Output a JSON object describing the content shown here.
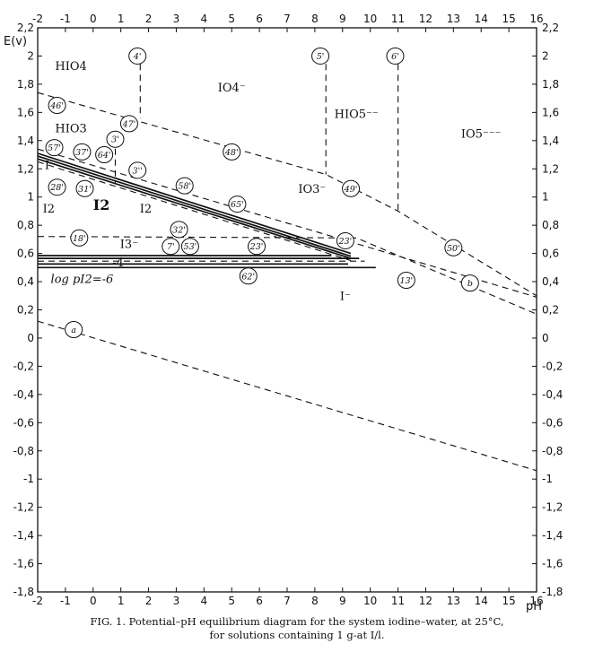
{
  "chart_data": {
    "type": "line",
    "xlabel": "pH",
    "ylabel": "E(v)",
    "xlim": [
      -2,
      16
    ],
    "ylim": [
      -1.8,
      2.2
    ],
    "x_ticks": [
      "-2",
      "-1",
      "0",
      "1",
      "2",
      "3",
      "4",
      "5",
      "6",
      "7",
      "8",
      "9",
      "10",
      "11",
      "12",
      "13",
      "14",
      "15",
      "16"
    ],
    "x_ticks_top": [
      "-2",
      "-1",
      "0",
      "1",
      "2",
      "3",
      "4",
      "5",
      "6",
      "7",
      "8",
      "9",
      "10",
      "11",
      "12",
      "13",
      "14",
      "15",
      "16"
    ],
    "y_ticks": [
      "2,2",
      "2",
      "1,8",
      "1,6",
      "1,4",
      "1,2",
      "1",
      "0,8",
      "0,6",
      "0,4",
      "0,2",
      "0",
      "-0,2",
      "-0,4",
      "-0,6",
      "-0,8",
      "-1",
      "-1,2",
      "-1,4",
      "-1,6",
      "-1,8"
    ],
    "grid": false,
    "series": [
      {
        "name": "a",
        "style": "dashed",
        "x": [
          -2,
          16
        ],
        "y": [
          0.12,
          -0.94
        ]
      },
      {
        "name": "b",
        "style": "dashed",
        "x": [
          -2,
          16
        ],
        "y": [
          1.34,
          0.29
        ]
      },
      {
        "style": "dashed",
        "x": [
          -2,
          8.4,
          11,
          16
        ],
        "y": [
          1.74,
          1.16,
          0.9,
          0.3
        ]
      },
      {
        "style": "dashed",
        "x": [
          -2,
          9.5,
          16
        ],
        "y": [
          0.72,
          0.71,
          0.17
        ]
      },
      {
        "style": "dashed",
        "x": [
          1.7,
          1.7
        ],
        "y": [
          2.02,
          1.56
        ]
      },
      {
        "style": "dashed",
        "x": [
          8.4,
          8.4
        ],
        "y": [
          2.02,
          1.16
        ]
      },
      {
        "style": "dashed",
        "x": [
          11,
          11
        ],
        "y": [
          2.02,
          0.9
        ]
      },
      {
        "style": "dashed",
        "x": [
          0.8,
          0.8
        ],
        "y": [
          1.42,
          1.09
        ]
      },
      {
        "style": "solid",
        "x": [
          -2,
          9.3
        ],
        "y": [
          1.31,
          0.6
        ]
      },
      {
        "style": "solid",
        "x": [
          -2,
          9.3
        ],
        "y": [
          1.29,
          0.58
        ]
      },
      {
        "style": "solid",
        "x": [
          -2,
          9.3
        ],
        "y": [
          1.27,
          0.565
        ]
      },
      {
        "style": "dashed",
        "x": [
          -2,
          9.3
        ],
        "y": [
          1.25,
          0.55
        ]
      },
      {
        "style": "solid",
        "x": [
          -2,
          8.6
        ],
        "y": [
          0.585,
          0.585
        ]
      },
      {
        "style": "solid",
        "x": [
          -2,
          9.6
        ],
        "y": [
          0.565,
          0.565
        ]
      },
      {
        "style": "dashed",
        "x": [
          -2,
          9.8
        ],
        "y": [
          0.545,
          0.545
        ]
      },
      {
        "style": "solid",
        "x": [
          -2,
          10.2
        ],
        "y": [
          0.5,
          0.5
        ]
      },
      {
        "style": "solid",
        "x": [
          -2,
          9.2
        ],
        "y": [
          0.525,
          0.525
        ]
      }
    ],
    "species_labels": [
      {
        "text": "HIO4",
        "x": -0.8,
        "y": 1.9
      },
      {
        "text": "IO4⁻",
        "x": 5,
        "y": 1.75
      },
      {
        "text": "HIO5⁻⁻",
        "x": 9.5,
        "y": 1.56
      },
      {
        "text": "IO5⁻⁻⁻",
        "x": 14,
        "y": 1.42
      },
      {
        "text": "HIO3",
        "x": -0.8,
        "y": 1.46
      },
      {
        "text": "IO3⁻",
        "x": 7.9,
        "y": 1.03
      },
      {
        "text": "I⁻",
        "x": -1.55,
        "y": 1.2
      },
      {
        "text": "I2",
        "x": -1.6,
        "y": 0.89
      },
      {
        "text": "I2",
        "x": 0.3,
        "y": 0.91,
        "bold": true
      },
      {
        "text": "I2",
        "x": 1.9,
        "y": 0.89
      },
      {
        "text": "I3⁻",
        "x": 1.3,
        "y": 0.64
      },
      {
        "text": "-4",
        "x": 0.9,
        "y": 0.51
      },
      {
        "text": "log pI2=-6",
        "x": -0.4,
        "y": 0.39
      },
      {
        "text": "I⁻",
        "x": 9.1,
        "y": 0.27
      }
    ],
    "annotations": [
      {
        "text": "4'",
        "x": 1.6,
        "y": 2.0
      },
      {
        "text": "5'",
        "x": 8.2,
        "y": 2.0
      },
      {
        "text": "6'",
        "x": 10.9,
        "y": 2.0
      },
      {
        "text": "46'",
        "x": -1.3,
        "y": 1.65
      },
      {
        "text": "47'",
        "x": 1.3,
        "y": 1.52
      },
      {
        "text": "48'",
        "x": 5,
        "y": 1.32
      },
      {
        "text": "3'",
        "x": 0.8,
        "y": 1.41
      },
      {
        "text": "57'",
        "x": -1.4,
        "y": 1.35
      },
      {
        "text": "37'",
        "x": -0.4,
        "y": 1.32
      },
      {
        "text": "64'",
        "x": 0.4,
        "y": 1.3
      },
      {
        "text": "3''",
        "x": 1.6,
        "y": 1.19
      },
      {
        "text": "58'",
        "x": 3.3,
        "y": 1.08
      },
      {
        "text": "28'",
        "x": -1.3,
        "y": 1.07
      },
      {
        "text": "31'",
        "x": -0.3,
        "y": 1.06
      },
      {
        "text": "65'",
        "x": 5.2,
        "y": 0.95
      },
      {
        "text": "32'",
        "x": 3.1,
        "y": 0.77
      },
      {
        "text": "18'",
        "x": -0.5,
        "y": 0.71
      },
      {
        "text": "7'",
        "x": 2.8,
        "y": 0.65
      },
      {
        "text": "53'",
        "x": 3.5,
        "y": 0.65
      },
      {
        "text": "23'",
        "x": 5.9,
        "y": 0.65
      },
      {
        "text": "23'",
        "x": 9.1,
        "y": 0.69
      },
      {
        "text": "49'",
        "x": 9.3,
        "y": 1.06
      },
      {
        "text": "50'",
        "x": 13,
        "y": 0.64
      },
      {
        "text": "62'",
        "x": 5.6,
        "y": 0.44
      },
      {
        "text": "13'",
        "x": 11.3,
        "y": 0.41
      },
      {
        "text": "b",
        "x": 13.6,
        "y": 0.39
      },
      {
        "text": "a",
        "x": -0.7,
        "y": 0.06
      }
    ]
  },
  "caption_line1": "FIG. 1. Potential–pH equilibrium diagram for the system iodine–water, at 25°C,",
  "caption_line2": "for solutions containing 1 g-at I/l."
}
